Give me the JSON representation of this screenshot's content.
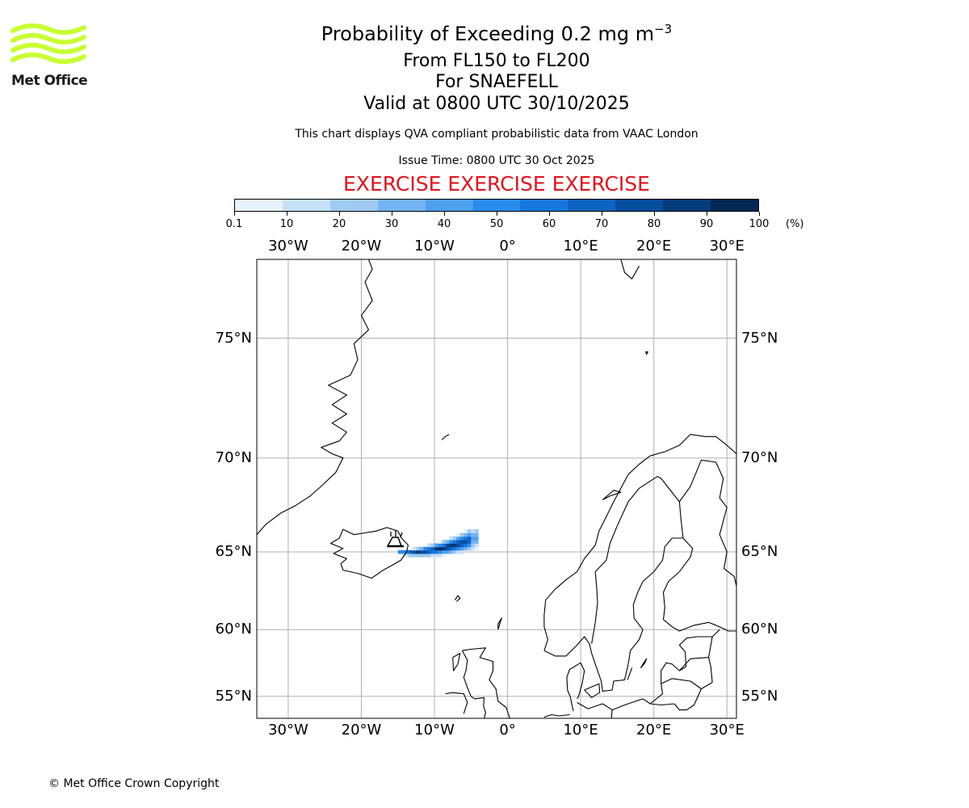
{
  "logo": {
    "text": "Met Office",
    "color": "#c8ff32"
  },
  "title": {
    "main": "Probability of Exceeding 0.2 mg m",
    "superscript": "−3",
    "levels": "From FL150 to FL200",
    "volcano": "For SNAEFELL",
    "valid": "Valid at 0800 UTC 30/10/2025"
  },
  "notes": {
    "compliance": "This chart displays QVA compliant probabilistic data from VAAC London",
    "issue_time": "Issue Time: 0800 UTC 30 Oct 2025"
  },
  "exercise_banner": {
    "text": "EXERCISE EXERCISE EXERCISE",
    "color": "#e0141e"
  },
  "colorbar": {
    "ticks": [
      "0.1",
      "10",
      "20",
      "30",
      "40",
      "50",
      "60",
      "70",
      "80",
      "90",
      "100"
    ],
    "unit": "(%)",
    "colors": [
      "#e8f2fc",
      "#c6e0f7",
      "#9fcaf3",
      "#75b4f2",
      "#4ea1ef",
      "#2a8ced",
      "#1777df",
      "#0e62c0",
      "#074e9d",
      "#053b7a",
      "#032652"
    ]
  },
  "map": {
    "lon_labels": [
      "30°W",
      "20°W",
      "10°W",
      "0°",
      "10°E",
      "20°E",
      "30°E"
    ],
    "lon_values": [
      -30,
      -20,
      -10,
      0,
      10,
      20,
      30
    ],
    "lat_labels": [
      "75°N",
      "70°N",
      "65°N",
      "60°N",
      "55°N"
    ],
    "lat_values": [
      75,
      70,
      65,
      60,
      55
    ],
    "extent": {
      "lon_min": -34.3,
      "lon_max": 31.3,
      "lat_min": 53.2,
      "lat_max": 77.6
    },
    "grid": true,
    "plume_source": "SNAEFELL"
  },
  "footer": {
    "copyright": "© Met Office Crown Copyright"
  }
}
